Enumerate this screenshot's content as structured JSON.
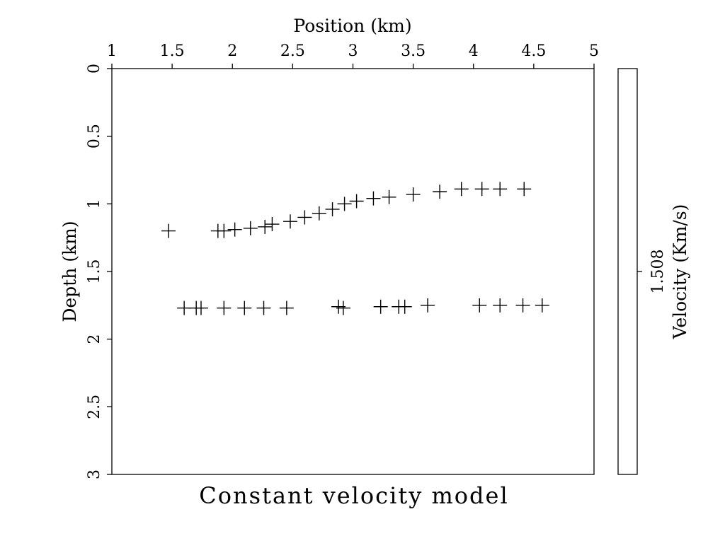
{
  "chart_data": {
    "type": "scatter",
    "title": "Constant velocity model",
    "xlabel": "Position (km)",
    "ylabel": "Depth (km)",
    "xlim": [
      1,
      5
    ],
    "ylim": [
      3,
      0
    ],
    "x_ticks": [
      "1",
      "1.5",
      "2",
      "2.5",
      "3",
      "3.5",
      "4",
      "4.5",
      "5"
    ],
    "y_ticks": [
      "0",
      "0.5",
      "1",
      "1.5",
      "2",
      "2.5",
      "3"
    ],
    "marker": "+",
    "grid": false,
    "series": [
      {
        "points": [
          [
            1.47,
            1.2
          ],
          [
            1.88,
            1.2
          ],
          [
            1.93,
            1.2
          ],
          [
            2.02,
            1.19
          ],
          [
            2.15,
            1.18
          ],
          [
            2.27,
            1.17
          ],
          [
            2.33,
            1.15
          ],
          [
            2.48,
            1.13
          ],
          [
            2.6,
            1.1
          ],
          [
            2.72,
            1.07
          ],
          [
            2.83,
            1.04
          ],
          [
            2.93,
            1.0
          ],
          [
            3.03,
            0.98
          ],
          [
            3.17,
            0.96
          ],
          [
            3.3,
            0.95
          ],
          [
            3.5,
            0.93
          ],
          [
            3.72,
            0.91
          ],
          [
            3.9,
            0.89
          ],
          [
            4.07,
            0.89
          ],
          [
            4.22,
            0.89
          ],
          [
            4.42,
            0.89
          ]
        ]
      },
      {
        "points": [
          [
            1.6,
            1.77
          ],
          [
            1.7,
            1.77
          ],
          [
            1.74,
            1.77
          ],
          [
            1.93,
            1.77
          ],
          [
            2.1,
            1.77
          ],
          [
            2.26,
            1.77
          ],
          [
            2.45,
            1.77
          ],
          [
            2.88,
            1.76
          ],
          [
            2.92,
            1.77
          ],
          [
            3.23,
            1.76
          ],
          [
            3.38,
            1.76
          ],
          [
            3.43,
            1.76
          ],
          [
            3.62,
            1.75
          ],
          [
            4.05,
            1.75
          ],
          [
            4.22,
            1.75
          ],
          [
            4.41,
            1.75
          ],
          [
            4.57,
            1.75
          ]
        ]
      }
    ],
    "colorbar": {
      "label": "Velocity (Km/s)",
      "tick_value": "1.508"
    }
  }
}
